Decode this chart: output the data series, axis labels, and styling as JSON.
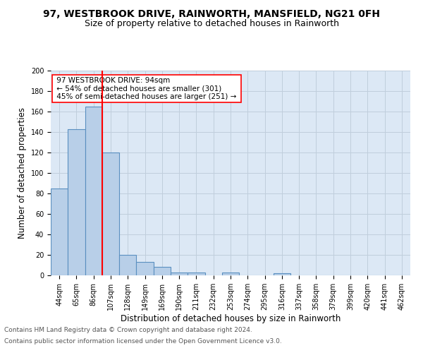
{
  "title": "97, WESTBROOK DRIVE, RAINWORTH, MANSFIELD, NG21 0FH",
  "subtitle": "Size of property relative to detached houses in Rainworth",
  "xlabel": "Distribution of detached houses by size in Rainworth",
  "ylabel": "Number of detached properties",
  "footnote1": "Contains HM Land Registry data © Crown copyright and database right 2024.",
  "footnote2": "Contains public sector information licensed under the Open Government Licence v3.0.",
  "annotation_line1": "97 WESTBROOK DRIVE: 94sqm",
  "annotation_line2": "← 54% of detached houses are smaller (301)",
  "annotation_line3": "45% of semi-detached houses are larger (251) →",
  "bar_labels": [
    "44sqm",
    "65sqm",
    "86sqm",
    "107sqm",
    "128sqm",
    "149sqm",
    "169sqm",
    "190sqm",
    "211sqm",
    "232sqm",
    "253sqm",
    "274sqm",
    "295sqm",
    "316sqm",
    "337sqm",
    "358sqm",
    "379sqm",
    "399sqm",
    "420sqm",
    "441sqm",
    "462sqm"
  ],
  "bar_values": [
    85,
    143,
    165,
    120,
    20,
    13,
    8,
    3,
    3,
    0,
    3,
    0,
    0,
    2,
    0,
    0,
    0,
    0,
    0,
    0,
    0
  ],
  "bar_color": "#b8cfe8",
  "bar_edge_color": "#5a8fc0",
  "red_line_x": 2.5,
  "ylim": [
    0,
    200
  ],
  "yticks": [
    0,
    20,
    40,
    60,
    80,
    100,
    120,
    140,
    160,
    180,
    200
  ],
  "bg_color": "#dce8f5",
  "fig_bg_color": "#ffffff",
  "grid_color": "#c0cedc",
  "title_fontsize": 10,
  "subtitle_fontsize": 9,
  "axis_label_fontsize": 8.5,
  "tick_fontsize": 7,
  "annotation_fontsize": 7.5,
  "footnote_fontsize": 6.5
}
